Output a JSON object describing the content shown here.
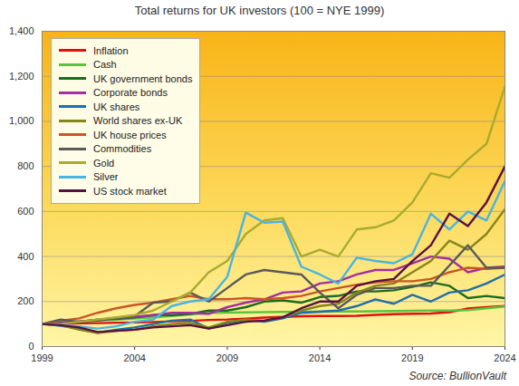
{
  "chart_data": {
    "type": "line",
    "title": "Total returns for UK investors (100 = NYE  1999)",
    "source": "Source: BullionVault",
    "x": [
      1999,
      2000,
      2001,
      2002,
      2003,
      2004,
      2005,
      2006,
      2007,
      2008,
      2009,
      2010,
      2011,
      2012,
      2013,
      2014,
      2015,
      2016,
      2017,
      2018,
      2019,
      2020,
      2021,
      2022,
      2023,
      2024
    ],
    "xlim": [
      1999,
      2024
    ],
    "xticks": [
      1999,
      2004,
      2009,
      2014,
      2019,
      2024
    ],
    "ylim": [
      0,
      1400
    ],
    "yticks": [
      0,
      200,
      400,
      600,
      800,
      {
        "value": 1000,
        "label": "1,000"
      },
      {
        "value": 1200,
        "label": "1,200"
      },
      {
        "value": 1400,
        "label": "1,400"
      }
    ],
    "grid": true,
    "legend": "top-left",
    "series": [
      {
        "name": "Inflation",
        "color": "#e01010",
        "values": [
          100,
          101,
          103,
          104,
          106,
          107,
          109,
          112,
          114,
          118,
          120,
          124,
          129,
          132,
          135,
          136,
          136,
          137,
          141,
          144,
          146,
          147,
          153,
          169,
          175,
          180
        ]
      },
      {
        "name": "Cash",
        "color": "#5cc43c",
        "values": [
          100,
          106,
          111,
          115,
          119,
          124,
          130,
          136,
          143,
          150,
          151,
          152,
          153,
          154,
          155,
          155,
          156,
          156,
          157,
          158,
          159,
          160,
          160,
          162,
          170,
          178
        ]
      },
      {
        "name": "UK government bonds",
        "color": "#1c6b1c",
        "values": [
          100,
          108,
          110,
          120,
          122,
          130,
          140,
          140,
          145,
          160,
          160,
          175,
          200,
          205,
          195,
          220,
          225,
          245,
          245,
          250,
          265,
          285,
          270,
          215,
          225,
          215
        ]
      },
      {
        "name": "Corporate bonds",
        "color": "#a32ea3",
        "values": [
          100,
          105,
          112,
          118,
          128,
          132,
          140,
          150,
          150,
          145,
          175,
          195,
          210,
          240,
          245,
          280,
          290,
          320,
          340,
          340,
          370,
          400,
          390,
          330,
          350,
          355
        ]
      },
      {
        "name": "UK shares",
        "color": "#1f6fa8",
        "values": [
          100,
          92,
          80,
          62,
          75,
          85,
          100,
          115,
          120,
          80,
          105,
          118,
          110,
          125,
          150,
          155,
          160,
          180,
          210,
          190,
          230,
          200,
          240,
          250,
          280,
          320
        ]
      },
      {
        "name": "World shares ex-UK",
        "color": "#84861a",
        "values": [
          100,
          95,
          75,
          60,
          70,
          75,
          90,
          100,
          105,
          85,
          110,
          120,
          115,
          130,
          160,
          180,
          190,
          240,
          270,
          280,
          330,
          380,
          470,
          430,
          500,
          610
        ]
      },
      {
        "name": "UK house prices",
        "color": "#cc5522",
        "values": [
          100,
          115,
          125,
          150,
          170,
          185,
          195,
          210,
          225,
          210,
          210,
          215,
          210,
          215,
          225,
          245,
          260,
          275,
          285,
          290,
          290,
          300,
          330,
          350,
          345,
          350
        ]
      },
      {
        "name": "Commodities",
        "color": "#5a5a5a",
        "values": [
          100,
          120,
          110,
          115,
          125,
          135,
          195,
          200,
          240,
          200,
          260,
          320,
          340,
          330,
          320,
          240,
          170,
          230,
          260,
          260,
          270,
          270,
          360,
          450,
          350,
          350
        ]
      },
      {
        "name": "Gold",
        "color": "#a9ab2e",
        "values": [
          100,
          100,
          110,
          120,
          130,
          140,
          160,
          200,
          240,
          330,
          380,
          500,
          560,
          570,
          400,
          430,
          400,
          520,
          530,
          560,
          640,
          770,
          750,
          830,
          900,
          1155
        ]
      },
      {
        "name": "Silver",
        "color": "#4ab4e2",
        "values": [
          100,
          95,
          90,
          80,
          90,
          110,
          120,
          180,
          200,
          210,
          310,
          595,
          550,
          555,
          355,
          320,
          280,
          395,
          380,
          370,
          410,
          590,
          520,
          600,
          560,
          735
        ]
      },
      {
        "name": "US stock market",
        "color": "#5a1042",
        "values": [
          100,
          95,
          85,
          65,
          70,
          75,
          85,
          90,
          95,
          80,
          95,
          110,
          115,
          130,
          170,
          200,
          200,
          270,
          290,
          300,
          380,
          450,
          590,
          535,
          640,
          800
        ]
      }
    ]
  }
}
